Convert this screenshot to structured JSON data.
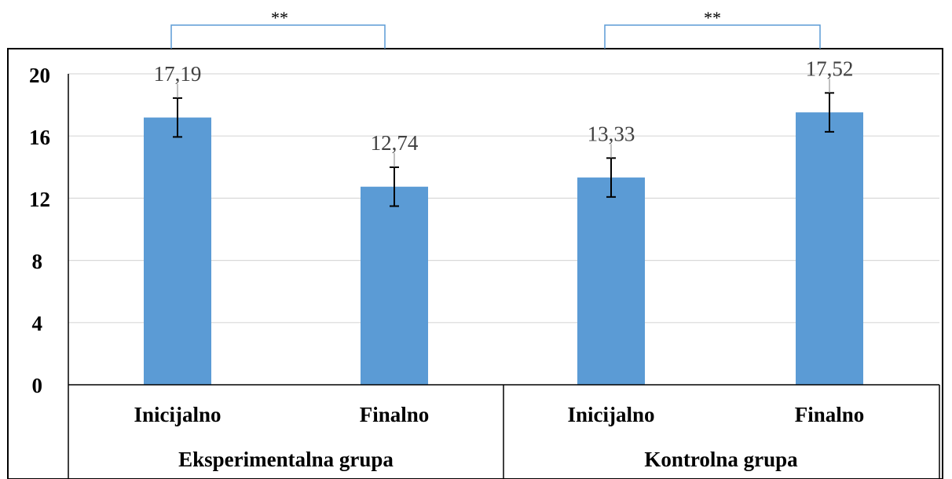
{
  "chart_data": {
    "type": "bar",
    "groups": [
      {
        "label": "Eksperimentalna grupa",
        "categories": [
          "Inicijalno",
          "Finalno"
        ]
      },
      {
        "label": "Kontrolna grupa",
        "categories": [
          "Inicijalno",
          "Finalno"
        ]
      }
    ],
    "categories": [
      "Inicijalno",
      "Finalno",
      "Inicijalno",
      "Finalno"
    ],
    "values": [
      17.19,
      12.74,
      13.33,
      17.52
    ],
    "value_labels": [
      "17,19",
      "12,74",
      "13,33",
      "17,52"
    ],
    "error": [
      1.25,
      1.25,
      1.25,
      1.25
    ],
    "yticks": [
      "0",
      "4",
      "8",
      "12",
      "16",
      "20"
    ],
    "ylim": [
      0,
      20
    ],
    "grid": true,
    "significance": [
      {
        "label": "**",
        "from": 0,
        "to": 1
      },
      {
        "label": "**",
        "from": 2,
        "to": 3
      }
    ],
    "colors": {
      "bar": "#5b9bd5",
      "grid": "#d9d9d9",
      "bracket": "#5b9bd5",
      "axis": "#000000"
    }
  }
}
